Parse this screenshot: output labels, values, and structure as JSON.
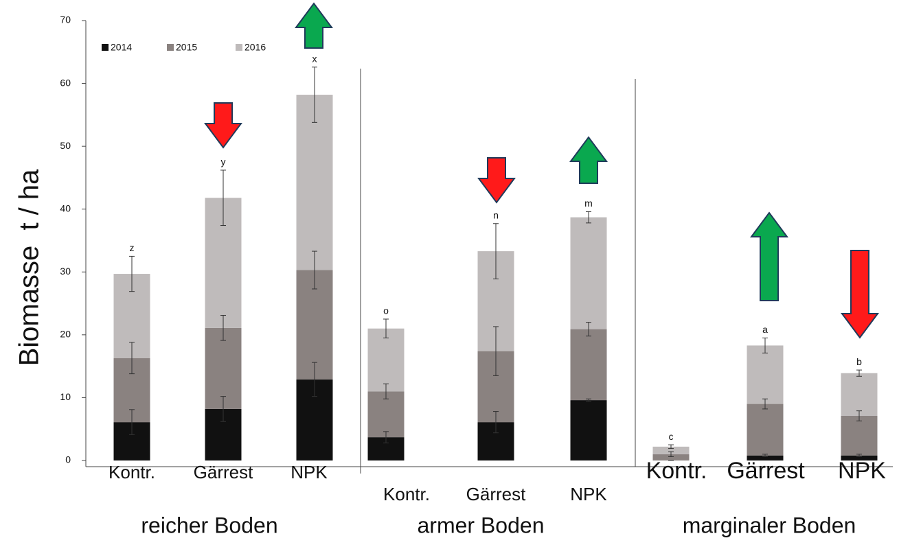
{
  "chart_data": {
    "type": "stacked_bar",
    "y_label": "Biomasse  t / ha",
    "categories": [
      "Kontr.",
      "Gärrest",
      "NPK",
      "Kontr.",
      "Gärrest",
      "NPK",
      "Kontr.",
      "Gärrest",
      "NPK"
    ],
    "groups": [
      "reicher Boden",
      "armer Boden",
      "marginaler Boden"
    ],
    "letters": [
      "z",
      "y",
      "x",
      "o",
      "n",
      "m",
      "c",
      "a",
      "b"
    ],
    "series": [
      {
        "name": "2014",
        "color": "#111111",
        "values": [
          6.1,
          8.2,
          12.9,
          3.7,
          6.1,
          9.6,
          0,
          0.8,
          0.8
        ],
        "errors": [
          2,
          2,
          2.7,
          0.9,
          1.7,
          0.2,
          0,
          0.2,
          0.2
        ]
      },
      {
        "name": "2015",
        "color": "#8a8280",
        "values": [
          10.2,
          12.9,
          17.4,
          7.3,
          11.3,
          11.3,
          1.0,
          8.2,
          6.3
        ],
        "errors": [
          2.5,
          2,
          3,
          1.2,
          3.9,
          1.1,
          0.4,
          0.8,
          0.8
        ]
      },
      {
        "name": "2016",
        "color": "#bfbbbb",
        "values": [
          13.4,
          20.7,
          27.9,
          10.0,
          15.9,
          17.8,
          1.2,
          9.3,
          6.8
        ],
        "errors": [
          2.8,
          4.4,
          4.4,
          1.5,
          4.4,
          0.9,
          0.3,
          1.2,
          0.5
        ]
      }
    ],
    "ylim": [
      0,
      70
    ],
    "yticks": [
      0,
      10,
      20,
      30,
      40,
      50,
      60,
      70
    ]
  }
}
